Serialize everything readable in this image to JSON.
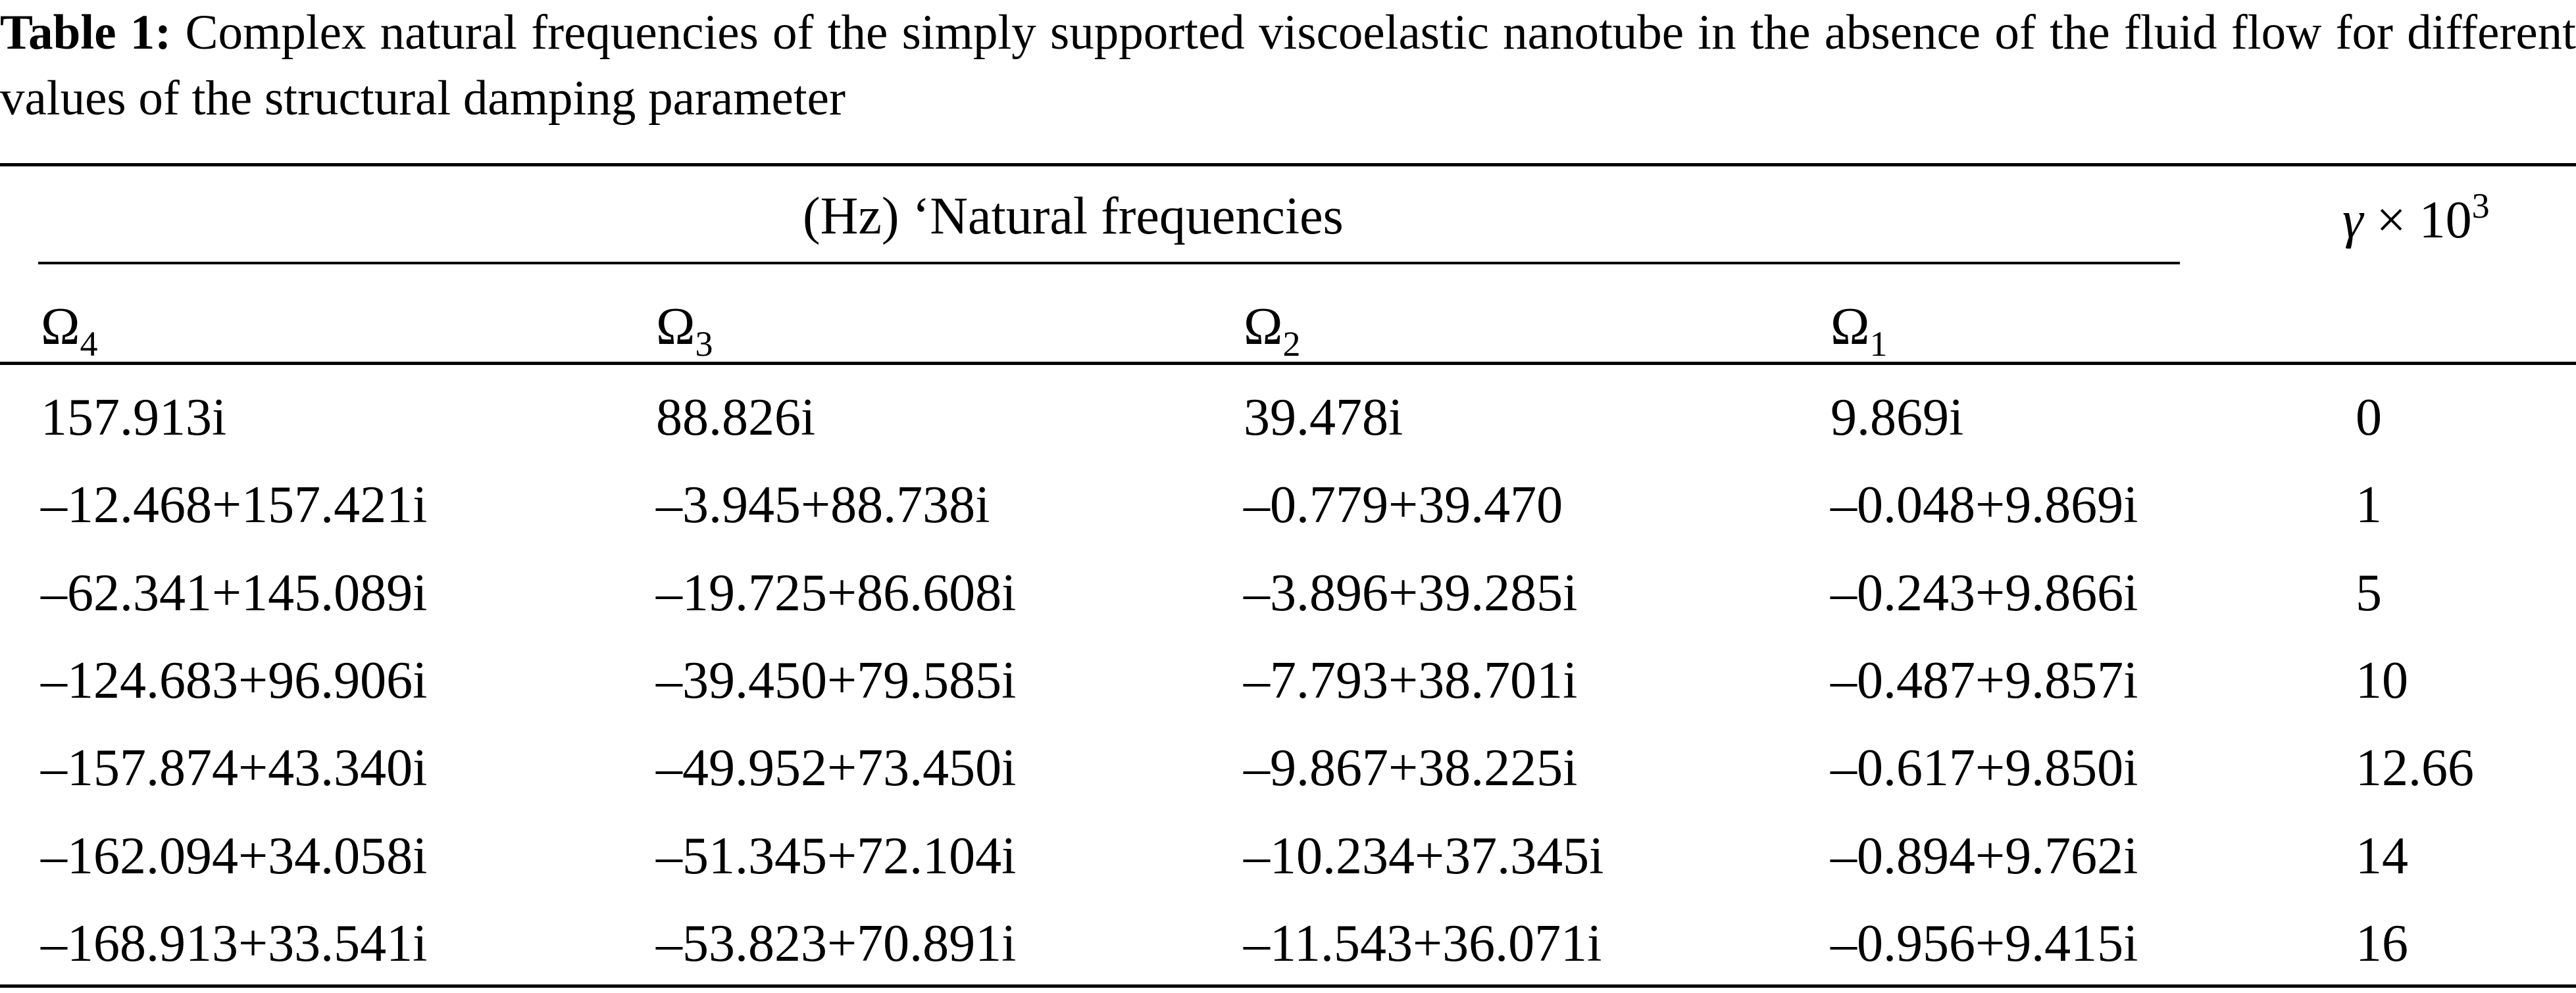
{
  "caption": {
    "label": "Table 1:",
    "text": "Complex natural frequencies of the simply supported viscoelastic nanotube in the absence of the fluid flow for different values of the structural damping parameter"
  },
  "header": {
    "group_label": "(Hz) ‘Natural frequencies",
    "gamma_symbol": "γ",
    "gamma_times": "× 10",
    "gamma_exp": "3",
    "omega_symbol": "Ω",
    "omega_indices": [
      "4",
      "3",
      "2",
      "1"
    ]
  },
  "rows": [
    {
      "omega4": "157.913i",
      "omega3": "88.826i",
      "omega2": "39.478i",
      "omega1": "9.869i",
      "gamma": "0"
    },
    {
      "omega4": "–12.468+157.421i",
      "omega3": "–3.945+88.738i",
      "omega2": "–0.779+39.470",
      "omega1": "–0.048+9.869i",
      "gamma": "1"
    },
    {
      "omega4": "–62.341+145.089i",
      "omega3": "–19.725+86.608i",
      "omega2": "–3.896+39.285i",
      "omega1": "–0.243+9.866i",
      "gamma": "5"
    },
    {
      "omega4": "–124.683+96.906i",
      "omega3": "–39.450+79.585i",
      "omega2": "–7.793+38.701i",
      "omega1": "–0.487+9.857i",
      "gamma": "10"
    },
    {
      "omega4": "–157.874+43.340i",
      "omega3": "–49.952+73.450i",
      "omega2": "–9.867+38.225i",
      "omega1": "–0.617+9.850i",
      "gamma": "12.66"
    },
    {
      "omega4": "–162.094+34.058i",
      "omega3": "–51.345+72.104i",
      "omega2": "–10.234+37.345i",
      "omega1": "–0.894+9.762i",
      "gamma": "14"
    },
    {
      "omega4": "–168.913+33.541i",
      "omega3": "–53.823+70.891i",
      "omega2": "–11.543+36.071i",
      "omega1": "–0.956+9.415i",
      "gamma": "16"
    }
  ]
}
